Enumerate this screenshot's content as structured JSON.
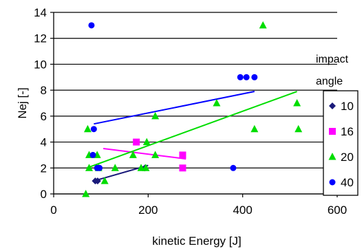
{
  "chart_data": {
    "type": "scatter",
    "xlabel": "kinetic Energy [J]",
    "ylabel": "Nej [-]",
    "xlim": [
      0,
      600
    ],
    "ylim": [
      0,
      14
    ],
    "x_ticks": [
      "0",
      "200",
      "400",
      "600"
    ],
    "y_ticks": [
      "0",
      "2",
      "4",
      "6",
      "8",
      "10",
      "12",
      "14"
    ],
    "grid": "horizontal",
    "legend_title_lines": [
      "impact",
      "angle"
    ],
    "legend_position": "right",
    "series": [
      {
        "name": "10",
        "marker": "diamond",
        "color": "#1a1a7a",
        "points": [
          [
            88,
            1
          ],
          [
            93,
            1
          ],
          [
            193,
            2
          ]
        ],
        "trendline": [
          [
            85,
            1
          ],
          [
            200,
            2.2
          ]
        ]
      },
      {
        "name": "16",
        "marker": "square",
        "color": "#ff00ff",
        "points": [
          [
            175,
            4
          ],
          [
            273,
            3
          ],
          [
            273,
            2
          ]
        ],
        "trendline": [
          [
            105,
            3.5
          ],
          [
            280,
            2.7
          ]
        ]
      },
      {
        "name": "20",
        "marker": "triangle",
        "color": "#00dd00",
        "points": [
          [
            68,
            0
          ],
          [
            72,
            5
          ],
          [
            75,
            2
          ],
          [
            75,
            3
          ],
          [
            92,
            3
          ],
          [
            95,
            2
          ],
          [
            108,
            1
          ],
          [
            130,
            2
          ],
          [
            168,
            3
          ],
          [
            185,
            2
          ],
          [
            195,
            2
          ],
          [
            197,
            4
          ],
          [
            215,
            6
          ],
          [
            215,
            3
          ],
          [
            345,
            7
          ],
          [
            425,
            5
          ],
          [
            443,
            13
          ],
          [
            515,
            7
          ],
          [
            518,
            5
          ]
        ],
        "trendline": [
          [
            70,
            2
          ],
          [
            515,
            7.9
          ]
        ]
      },
      {
        "name": "40",
        "marker": "circle",
        "color": "#0000ff",
        "points": [
          [
            80,
            13
          ],
          [
            83,
            3
          ],
          [
            85,
            5
          ],
          [
            92,
            2
          ],
          [
            97,
            2
          ],
          [
            380,
            2
          ],
          [
            395,
            9
          ],
          [
            408,
            9
          ],
          [
            425,
            9
          ]
        ],
        "trendline": [
          [
            85,
            5.4
          ],
          [
            425,
            7.9
          ]
        ]
      }
    ]
  }
}
